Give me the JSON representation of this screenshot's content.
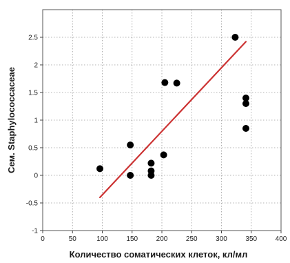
{
  "chart_data": {
    "type": "scatter",
    "title": "",
    "xlabel": "Количество соматических клеток, кл/мл",
    "ylabel": "Сем. Staphylococcaceae",
    "xlim": [
      0,
      400
    ],
    "ylim": [
      -1,
      3
    ],
    "x_ticks": [
      0,
      50,
      100,
      150,
      200,
      250,
      300,
      350,
      400
    ],
    "y_ticks": [
      -1,
      -0.5,
      0,
      0.5,
      1,
      1.5,
      2,
      2.5
    ],
    "x_tick_labels": [
      "0",
      "50",
      "100",
      "150",
      "200",
      "250",
      "300",
      "350",
      "400"
    ],
    "y_tick_labels": [
      "-1",
      "-0.5",
      "0",
      "0.5",
      "1",
      "1.5",
      "2",
      "2.5"
    ],
    "grid": true,
    "series": [
      {
        "type": "scatter",
        "color": "#000000",
        "points": [
          {
            "x": 96,
            "y": 0.12
          },
          {
            "x": 147,
            "y": 0.0
          },
          {
            "x": 147,
            "y": 0.55
          },
          {
            "x": 182,
            "y": 0.0
          },
          {
            "x": 182,
            "y": 0.08
          },
          {
            "x": 182,
            "y": 0.22
          },
          {
            "x": 203,
            "y": 0.37
          },
          {
            "x": 205,
            "y": 1.68
          },
          {
            "x": 225,
            "y": 1.67
          },
          {
            "x": 323,
            "y": 2.5
          },
          {
            "x": 341,
            "y": 1.4
          },
          {
            "x": 341,
            "y": 1.3
          },
          {
            "x": 341,
            "y": 0.85
          }
        ]
      },
      {
        "type": "line",
        "color": "#cc3333",
        "points": [
          {
            "x": 96,
            "y": -0.4
          },
          {
            "x": 341,
            "y": 2.42
          }
        ]
      }
    ]
  }
}
